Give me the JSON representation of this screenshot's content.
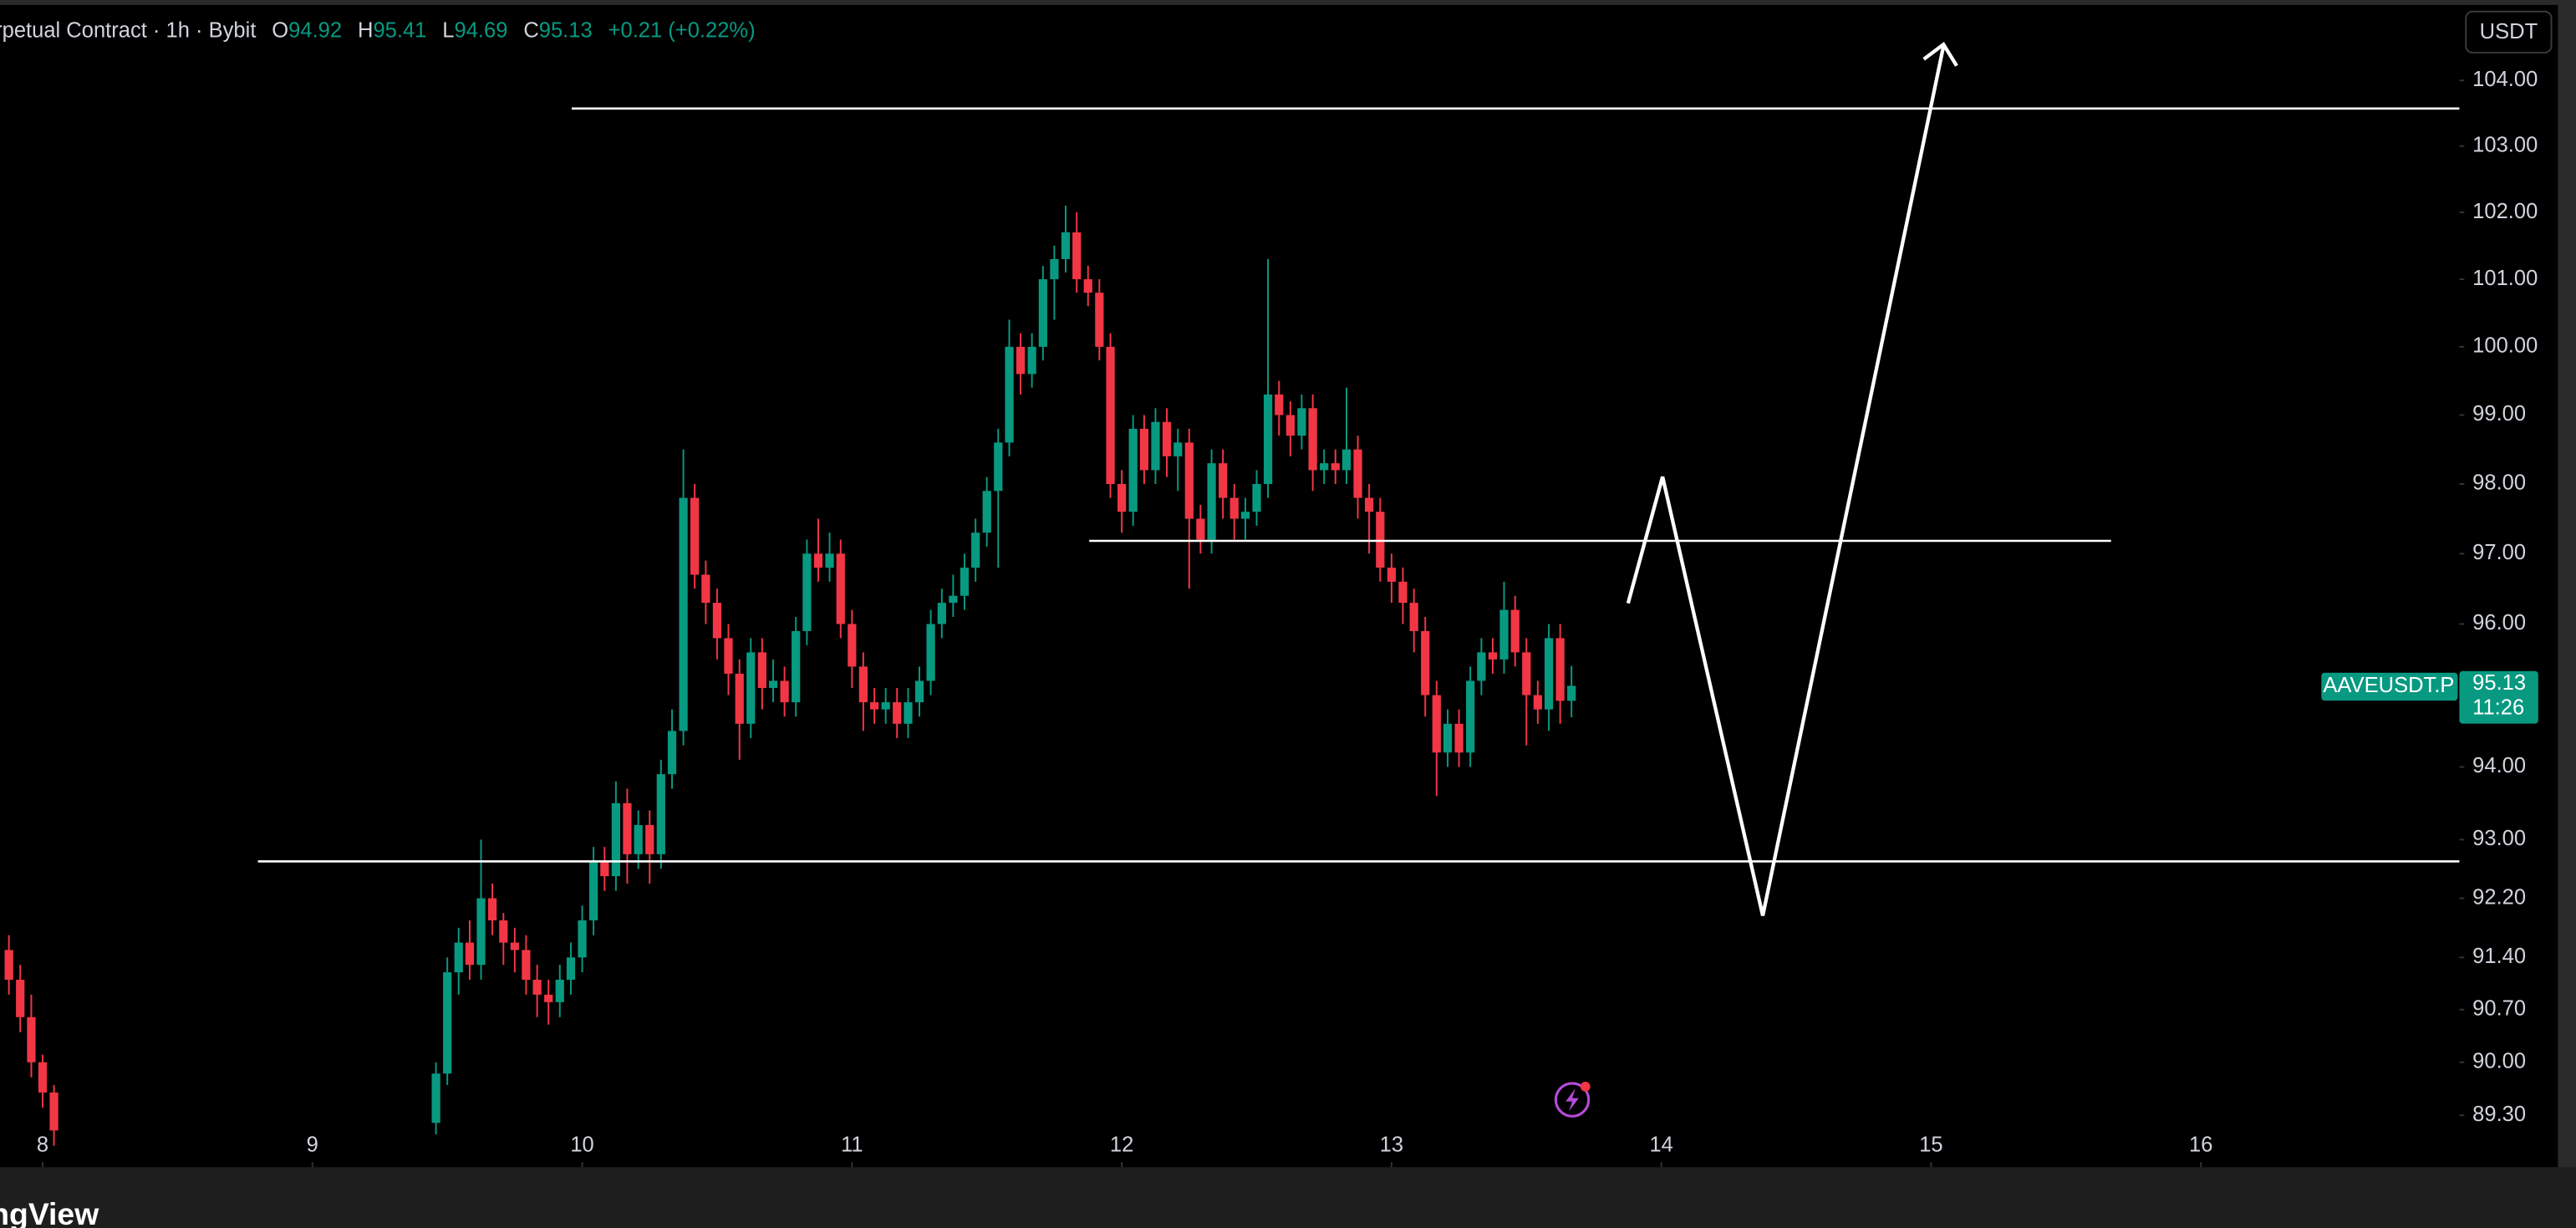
{
  "chart_data": {
    "type": "candlestick",
    "header": {
      "symbol": "rpetual Contract · 1h · Bybit",
      "labels": [
        "O",
        "H",
        "L",
        "C"
      ],
      "change": "+0.21 (+0.22%)"
    },
    "currency": "USDT",
    "price_label": "AAVEUSDT.P",
    "countdown": "11:26",
    "footer": "ngView",
    "up_color": "#089981",
    "down_color": "#f23645",
    "log_scale": true,
    "grid": false,
    "xlim": [
      7.842,
      16.958
    ],
    "xticks": [
      8,
      9,
      10,
      11,
      12,
      13,
      14,
      15,
      16
    ],
    "ylim": [
      88.62,
      105.24
    ],
    "yticks": [
      {
        "value": 104,
        "label": "104.00"
      },
      {
        "value": 103,
        "label": "103.00"
      },
      {
        "value": 102,
        "label": "102.00"
      },
      {
        "value": 101,
        "label": "101.00"
      },
      {
        "value": 100,
        "label": "100.00"
      },
      {
        "value": 99,
        "label": "99.00"
      },
      {
        "value": 98,
        "label": "98.00"
      },
      {
        "value": 97,
        "label": "97.00"
      },
      {
        "value": 96,
        "label": "96.00"
      },
      {
        "value": 94,
        "label": "94.00"
      },
      {
        "value": 93,
        "label": "93.00"
      },
      {
        "value": 92.2,
        "label": "92.20"
      },
      {
        "value": 91.4,
        "label": "91.40"
      },
      {
        "value": 90.7,
        "label": "90.70"
      },
      {
        "value": 90,
        "label": "90.00"
      },
      {
        "value": 89.3,
        "label": "89.30"
      }
    ],
    "x": [
      7.875,
      7.917,
      7.958,
      8.0,
      8.042,
      9.458,
      9.5,
      9.542,
      9.583,
      9.625,
      9.667,
      9.708,
      9.75,
      9.792,
      9.833,
      9.875,
      9.917,
      9.958,
      10.0,
      10.042,
      10.083,
      10.125,
      10.167,
      10.208,
      10.25,
      10.292,
      10.333,
      10.375,
      10.417,
      10.458,
      10.5,
      10.542,
      10.583,
      10.625,
      10.667,
      10.708,
      10.75,
      10.792,
      10.833,
      10.875,
      10.917,
      10.958,
      11.0,
      11.042,
      11.083,
      11.125,
      11.167,
      11.208,
      11.25,
      11.292,
      11.333,
      11.375,
      11.417,
      11.458,
      11.5,
      11.542,
      11.583,
      11.625,
      11.667,
      11.708,
      11.75,
      11.792,
      11.833,
      11.875,
      11.917,
      11.958,
      12.0,
      12.042,
      12.083,
      12.125,
      12.167,
      12.208,
      12.25,
      12.292,
      12.333,
      12.375,
      12.417,
      12.458,
      12.5,
      12.542,
      12.583,
      12.625,
      12.667,
      12.708,
      12.75,
      12.792,
      12.833,
      12.875,
      12.917,
      12.958,
      13.0,
      13.042,
      13.083,
      13.125,
      13.167,
      13.208,
      13.25,
      13.292,
      13.333,
      13.375,
      13.417,
      13.458,
      13.5,
      13.542,
      13.583,
      13.625,
      13.667
    ],
    "open": [
      91.5,
      91.1,
      90.6,
      90.0,
      89.6,
      89.2,
      89.85,
      91.2,
      91.6,
      91.3,
      92.2,
      91.9,
      91.6,
      91.5,
      91.1,
      90.9,
      90.8,
      91.1,
      91.4,
      91.9,
      92.7,
      92.5,
      93.5,
      92.8,
      93.2,
      92.8,
      93.9,
      94.5,
      97.8,
      96.7,
      96.3,
      95.8,
      95.3,
      94.6,
      95.6,
      95.1,
      95.2,
      94.9,
      95.9,
      97.0,
      96.8,
      97.0,
      96.0,
      95.4,
      94.9,
      94.8,
      94.9,
      94.6,
      94.9,
      95.2,
      96.0,
      96.3,
      96.4,
      96.8,
      97.3,
      97.9,
      98.6,
      100.0,
      99.6,
      100.0,
      101.0,
      101.3,
      101.7,
      101.0,
      100.8,
      100.0,
      98.0,
      97.6,
      98.8,
      98.2,
      98.9,
      98.4,
      98.6,
      97.5,
      97.2,
      98.3,
      97.8,
      97.5,
      97.6,
      98.0,
      99.3,
      99.0,
      98.7,
      99.1,
      98.2,
      98.3,
      98.2,
      98.5,
      97.8,
      97.6,
      96.8,
      96.6,
      96.3,
      95.9,
      95.0,
      94.2,
      94.6,
      94.2,
      95.2,
      95.6,
      95.5,
      96.2,
      95.6,
      95.0,
      94.8,
      95.8,
      94.92
    ],
    "high": [
      91.7,
      91.3,
      90.9,
      90.1,
      89.7,
      90.0,
      91.4,
      91.8,
      91.9,
      93.0,
      92.4,
      92.0,
      91.8,
      91.7,
      91.3,
      91.1,
      91.3,
      91.6,
      92.1,
      92.9,
      92.9,
      93.8,
      93.7,
      93.4,
      93.4,
      94.1,
      94.8,
      98.5,
      98.0,
      96.9,
      96.5,
      96.0,
      95.5,
      95.8,
      95.8,
      95.5,
      95.4,
      96.1,
      97.2,
      97.5,
      97.3,
      97.2,
      96.2,
      95.6,
      95.1,
      95.1,
      95.1,
      95.1,
      95.4,
      96.2,
      96.5,
      96.7,
      97.0,
      97.5,
      98.1,
      98.8,
      100.4,
      100.2,
      100.2,
      101.2,
      101.5,
      102.1,
      102.0,
      101.2,
      101.0,
      100.2,
      98.2,
      99.0,
      99.0,
      99.1,
      99.1,
      98.8,
      98.8,
      97.7,
      98.5,
      98.5,
      98.0,
      97.8,
      98.2,
      101.3,
      99.5,
      99.2,
      99.3,
      99.3,
      98.5,
      98.5,
      99.4,
      98.7,
      98.0,
      97.8,
      97.0,
      96.8,
      96.5,
      96.1,
      95.2,
      94.8,
      94.8,
      95.4,
      95.8,
      95.8,
      96.6,
      96.4,
      95.8,
      95.2,
      96.0,
      96.0,
      95.41
    ],
    "low": [
      90.9,
      90.4,
      89.8,
      89.4,
      88.9,
      89.05,
      89.7,
      90.9,
      91.1,
      91.1,
      91.7,
      91.3,
      91.2,
      90.9,
      90.6,
      90.5,
      90.6,
      90.9,
      91.2,
      91.7,
      92.3,
      92.3,
      92.4,
      92.6,
      92.4,
      92.6,
      93.7,
      94.3,
      96.5,
      96.0,
      95.5,
      95.0,
      94.1,
      94.4,
      94.8,
      94.9,
      94.7,
      94.7,
      95.7,
      96.6,
      96.6,
      95.8,
      95.1,
      94.5,
      94.6,
      94.6,
      94.4,
      94.4,
      94.7,
      95.0,
      95.8,
      96.1,
      96.2,
      96.6,
      97.1,
      96.8,
      98.4,
      99.3,
      99.4,
      99.8,
      100.4,
      101.1,
      100.8,
      100.6,
      99.8,
      97.8,
      97.3,
      97.4,
      98.0,
      98.0,
      98.1,
      97.9,
      96.5,
      97.0,
      97.0,
      97.5,
      97.2,
      97.2,
      97.4,
      97.8,
      98.7,
      98.4,
      98.5,
      97.9,
      98.0,
      98.0,
      98.0,
      97.5,
      97.0,
      96.6,
      96.3,
      96.0,
      95.6,
      94.7,
      93.6,
      94.0,
      94.0,
      94.0,
      95.0,
      95.3,
      95.3,
      95.4,
      94.3,
      94.6,
      94.5,
      94.6,
      94.69
    ],
    "close": [
      91.1,
      90.6,
      90.0,
      89.6,
      89.1,
      89.85,
      91.2,
      91.6,
      91.3,
      92.2,
      91.9,
      91.6,
      91.5,
      91.1,
      90.9,
      90.8,
      91.1,
      91.4,
      91.9,
      92.7,
      92.5,
      93.5,
      92.8,
      93.2,
      92.8,
      93.9,
      94.5,
      97.8,
      96.7,
      96.3,
      95.8,
      95.3,
      94.6,
      95.6,
      95.1,
      95.2,
      94.9,
      95.9,
      97.0,
      96.8,
      97.0,
      96.0,
      95.4,
      94.9,
      94.8,
      94.9,
      94.6,
      94.9,
      95.2,
      96.0,
      96.3,
      96.4,
      96.8,
      97.3,
      97.9,
      98.6,
      100.0,
      99.6,
      100.0,
      101.0,
      101.3,
      101.7,
      101.0,
      100.8,
      100.0,
      98.0,
      97.6,
      98.8,
      98.2,
      98.9,
      98.4,
      98.6,
      97.5,
      97.2,
      98.3,
      97.8,
      97.5,
      97.6,
      98.0,
      99.3,
      99.0,
      98.7,
      99.1,
      98.2,
      98.3,
      98.2,
      98.5,
      97.8,
      97.6,
      96.8,
      96.6,
      96.3,
      95.9,
      95.0,
      94.2,
      94.6,
      94.2,
      95.2,
      95.6,
      95.5,
      96.2,
      95.6,
      95.0,
      94.8,
      95.8,
      94.92,
      95.13
    ]
  }
}
